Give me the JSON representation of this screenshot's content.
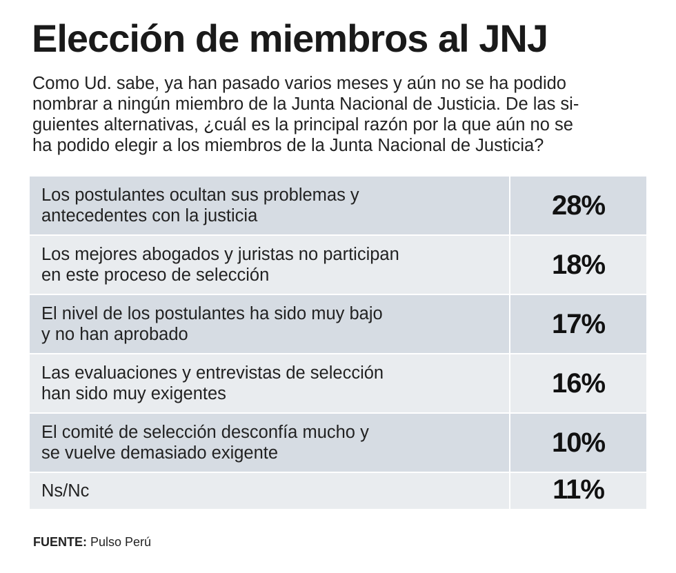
{
  "title": "Elección de miembros al JNJ",
  "question_lines": [
    "Como Ud. sabe, ya han pasado varios meses y aún no se ha podido",
    "nombrar a ningún miembro de la Junta Nacional de Justicia. De las si-",
    "guientes alternativas, ¿cuál es la principal razón por la que aún no se",
    "ha podido elegir a los miembros de la Junta Nacional de Justicia?"
  ],
  "chart_data": {
    "type": "table",
    "rows": [
      {
        "label_lines": [
          "Los postulantes ocultan sus problemas y",
          "antecedentes con la justicia"
        ],
        "value": 28,
        "value_label": "28%"
      },
      {
        "label_lines": [
          "Los mejores abogados y juristas no participan",
          "en este proceso de selección"
        ],
        "value": 18,
        "value_label": "18%"
      },
      {
        "label_lines": [
          "El nivel de los postulantes ha sido muy bajo",
          "y no han aprobado"
        ],
        "value": 17,
        "value_label": "17%"
      },
      {
        "label_lines": [
          "Las evaluaciones y entrevistas de selección",
          "han sido muy exigentes"
        ],
        "value": 16,
        "value_label": "16%"
      },
      {
        "label_lines": [
          "El comité de selección desconfía mucho y",
          "se vuelve demasiado exigente"
        ],
        "value": 10,
        "value_label": "10%"
      },
      {
        "label_lines": [
          "Ns/Nc"
        ],
        "value": 11,
        "value_label": "11%"
      }
    ]
  },
  "source": {
    "label": "FUENTE:",
    "text": "Pulso Perú"
  },
  "colors": {
    "row_dark": "#d6dce3",
    "row_light": "#e9ecef"
  }
}
